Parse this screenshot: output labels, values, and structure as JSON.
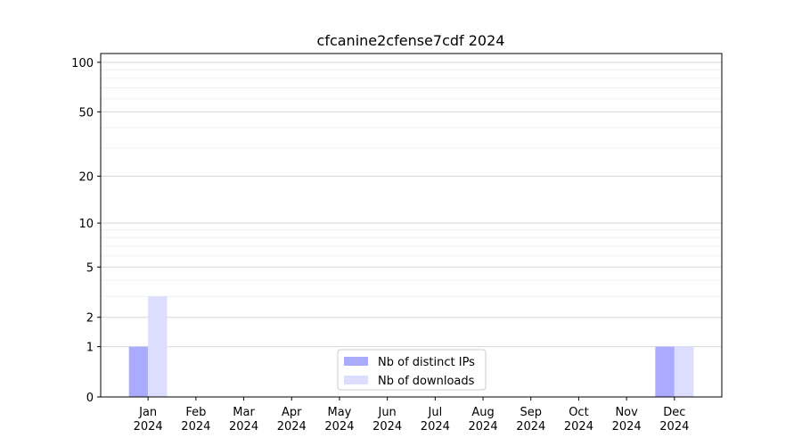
{
  "chart_data": {
    "type": "bar",
    "title": "cfcanine2cfense7cdf 2024",
    "categories": [
      "Jan 2024",
      "Feb 2024",
      "Mar 2024",
      "Apr 2024",
      "May 2024",
      "Jun 2024",
      "Jul 2024",
      "Aug 2024",
      "Sep 2024",
      "Oct 2024",
      "Nov 2024",
      "Dec 2024"
    ],
    "series": [
      {
        "name": "Nb of distinct IPs",
        "color": "#aaaaff",
        "values": [
          1,
          0,
          0,
          0,
          0,
          0,
          0,
          0,
          0,
          0,
          0,
          1
        ]
      },
      {
        "name": "Nb of downloads",
        "color": "#ddddff",
        "values": [
          3,
          0,
          0,
          0,
          0,
          0,
          0,
          0,
          0,
          0,
          0,
          1
        ]
      }
    ],
    "yscale": "log1p",
    "ylim": [
      0,
      113
    ],
    "yticks": [
      0,
      1,
      2,
      5,
      10,
      20,
      50,
      100
    ],
    "minor_yticks": [
      3,
      4,
      6,
      7,
      8,
      9,
      30,
      40,
      60,
      70,
      80,
      90
    ],
    "grid": true,
    "legend": "lower center"
  }
}
